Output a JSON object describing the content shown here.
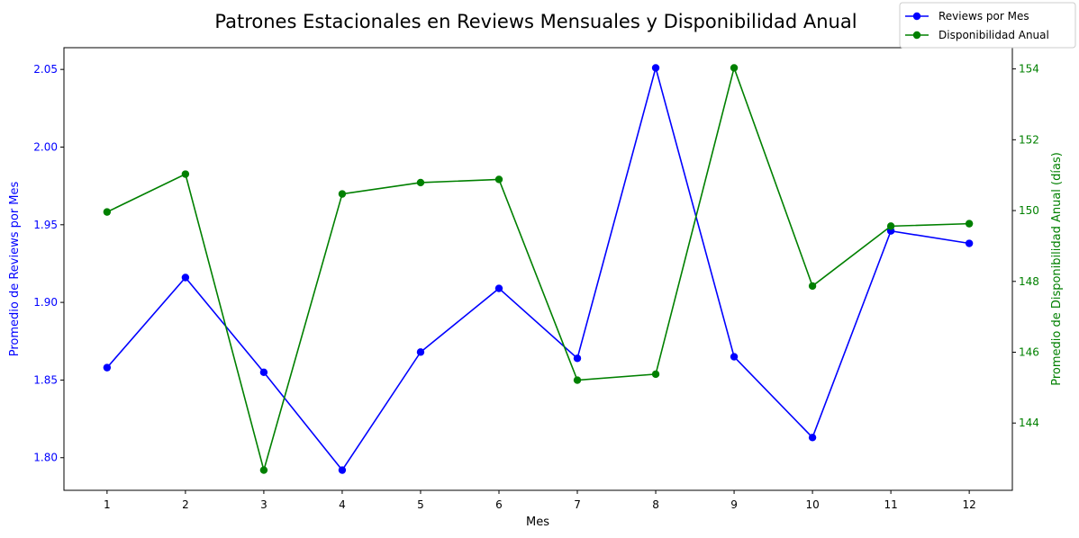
{
  "chart_data": {
    "type": "line",
    "title": "Patrones Estacionales en Reviews Mensuales y Disponibilidad Anual",
    "xlabel": "Mes",
    "ylabel_left": "Promedio de Reviews por Mes",
    "ylabel_right": "Promedio de Disponibilidad Anual (días)",
    "x": [
      1,
      2,
      3,
      4,
      5,
      6,
      7,
      8,
      9,
      10,
      11,
      12
    ],
    "x_ticks": [
      "1",
      "2",
      "3",
      "4",
      "5",
      "6",
      "7",
      "8",
      "9",
      "10",
      "11",
      "12"
    ],
    "ylim_left": [
      1.779,
      2.064
    ],
    "ylim_right": [
      142.1,
      154.6
    ],
    "yticks_left": [
      "1.80",
      "1.85",
      "1.90",
      "1.95",
      "2.00",
      "2.05"
    ],
    "yticks_right": [
      "144",
      "146",
      "148",
      "150",
      "152",
      "154"
    ],
    "grid": false,
    "legend_position": "top-right",
    "series": [
      {
        "name": "Reviews por Mes",
        "axis": "left",
        "color": "#0000ff",
        "values": [
          1.858,
          1.916,
          1.855,
          1.792,
          1.868,
          1.909,
          1.864,
          2.051,
          1.865,
          1.813,
          1.946,
          1.938
        ]
      },
      {
        "name": "Disponibilidad Anual",
        "axis": "right",
        "color": "#008000",
        "values": [
          149.96,
          151.03,
          142.67,
          150.47,
          150.79,
          150.88,
          145.21,
          145.38,
          154.03,
          147.87,
          149.56,
          149.63
        ]
      }
    ]
  }
}
